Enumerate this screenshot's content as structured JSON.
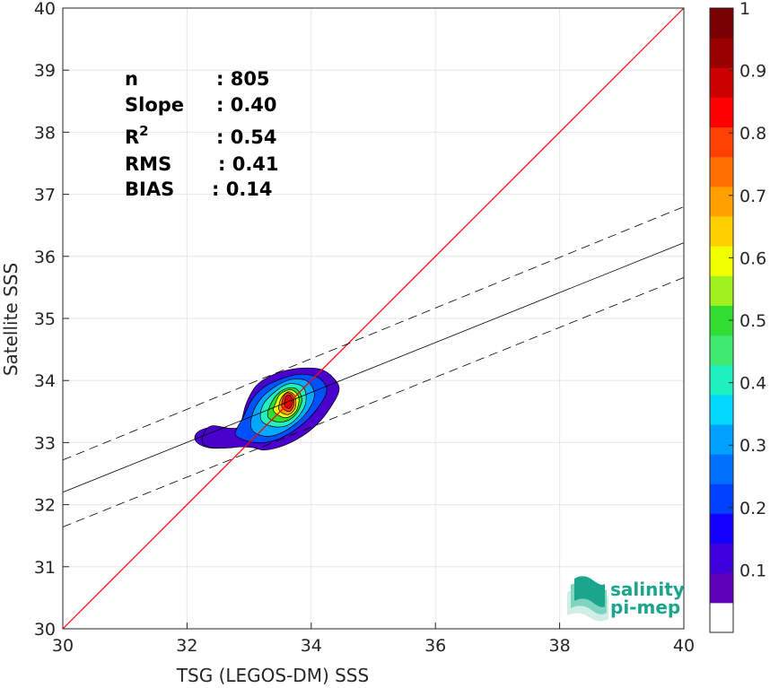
{
  "chart_data": {
    "type": "scatter",
    "subtype": "density-contour",
    "title": "",
    "xlabel": "TSG (LEGOS-DM) SSS",
    "ylabel": "Satellite SSS",
    "xlim": [
      30,
      40
    ],
    "ylim": [
      30,
      40
    ],
    "xticks": [
      30,
      32,
      34,
      36,
      38,
      40
    ],
    "yticks": [
      30,
      31,
      32,
      33,
      34,
      35,
      36,
      37,
      38,
      39,
      40
    ],
    "grid": true,
    "stats": [
      {
        "key": "n",
        "value": ": 805"
      },
      {
        "key": "Slope",
        "value": ": 0.40"
      },
      {
        "key": "R",
        "sup": "2",
        "value": ": 0.54"
      },
      {
        "key": "RMS",
        "value": ": 0.41"
      },
      {
        "key": "BIAS",
        "value": ": 0.14"
      }
    ],
    "one_to_one_line": {
      "color": "#ff0000",
      "from": [
        30,
        30
      ],
      "to": [
        40,
        40
      ]
    },
    "regression_line": {
      "from": [
        30,
        32.2
      ],
      "to": [
        40,
        36.22
      ]
    },
    "confidence_lines": [
      {
        "from": [
          30,
          32.72
        ],
        "to": [
          40,
          36.8
        ]
      },
      {
        "from": [
          30,
          31.64
        ],
        "to": [
          40,
          35.66
        ]
      }
    ],
    "density_peak": [
      33.62,
      33.68
    ],
    "colorbar": {
      "range": [
        0,
        1
      ],
      "ticks": [
        0.1,
        0.2,
        0.3,
        0.4,
        0.5,
        0.6,
        0.7,
        0.8,
        0.9,
        1
      ],
      "tick_labels": [
        "0.1",
        "0.2",
        "0.3",
        "0.4",
        "0.5",
        "0.6",
        "0.7",
        "0.8",
        "0.9",
        "1"
      ],
      "colors": [
        "#ffffff",
        "#5c00b8",
        "#3e00dd",
        "#1400ff",
        "#0040ff",
        "#0070ff",
        "#00a0ff",
        "#00d8ff",
        "#20f0c0",
        "#40e870",
        "#30dd30",
        "#a0f020",
        "#f0ff00",
        "#ffd000",
        "#ffa000",
        "#ff7000",
        "#ff4000",
        "#ff0000",
        "#cc0000",
        "#990000",
        "#780000"
      ]
    },
    "contour_levels": [
      {
        "level": 0.05,
        "color": "#4a00cc",
        "points": [
          [
            32.25,
            33.0
          ],
          [
            32.35,
            32.93
          ],
          [
            32.6,
            32.91
          ],
          [
            32.85,
            32.93
          ],
          [
            33.05,
            32.92
          ],
          [
            33.25,
            32.88
          ],
          [
            33.55,
            32.95
          ],
          [
            33.85,
            33.1
          ],
          [
            34.1,
            33.3
          ],
          [
            34.3,
            33.55
          ],
          [
            34.45,
            33.85
          ],
          [
            34.35,
            34.05
          ],
          [
            34.15,
            34.18
          ],
          [
            33.85,
            34.2
          ],
          [
            33.55,
            34.15
          ],
          [
            33.3,
            34.05
          ],
          [
            33.1,
            33.9
          ],
          [
            32.95,
            33.62
          ],
          [
            32.85,
            33.28
          ],
          [
            32.7,
            33.23
          ],
          [
            32.4,
            33.27
          ],
          [
            32.27,
            33.15
          ]
        ]
      },
      {
        "level": 0.2,
        "color": "#0050ff",
        "points": [
          [
            32.8,
            33.1
          ],
          [
            33.1,
            33.0
          ],
          [
            33.45,
            33.05
          ],
          [
            33.8,
            33.25
          ],
          [
            34.1,
            33.55
          ],
          [
            34.25,
            33.85
          ],
          [
            34.1,
            34.05
          ],
          [
            33.8,
            34.1
          ],
          [
            33.5,
            34.02
          ],
          [
            33.25,
            33.9
          ],
          [
            33.05,
            33.7
          ],
          [
            32.9,
            33.4
          ],
          [
            32.8,
            33.22
          ]
        ]
      },
      {
        "level": 0.3,
        "color": "#00a8ff",
        "points": [
          [
            33.05,
            33.2
          ],
          [
            33.3,
            33.1
          ],
          [
            33.6,
            33.2
          ],
          [
            33.9,
            33.45
          ],
          [
            34.05,
            33.75
          ],
          [
            33.95,
            33.98
          ],
          [
            33.7,
            34.02
          ],
          [
            33.45,
            33.92
          ],
          [
            33.2,
            33.72
          ],
          [
            33.05,
            33.45
          ]
        ]
      },
      {
        "level": 0.4,
        "color": "#20f0c0",
        "points": [
          [
            33.2,
            33.35
          ],
          [
            33.45,
            33.25
          ],
          [
            33.7,
            33.33
          ],
          [
            33.9,
            33.6
          ],
          [
            33.88,
            33.88
          ],
          [
            33.65,
            33.95
          ],
          [
            33.42,
            33.82
          ],
          [
            33.22,
            33.6
          ]
        ]
      },
      {
        "level": 0.5,
        "color": "#30dd30",
        "points": [
          [
            33.3,
            33.42
          ],
          [
            33.5,
            33.33
          ],
          [
            33.72,
            33.42
          ],
          [
            33.85,
            33.68
          ],
          [
            33.75,
            33.87
          ],
          [
            33.55,
            33.85
          ],
          [
            33.38,
            33.68
          ]
        ]
      },
      {
        "level": 0.6,
        "color": "#f0ff00",
        "points": [
          [
            33.4,
            33.5
          ],
          [
            33.58,
            33.4
          ],
          [
            33.75,
            33.5
          ],
          [
            33.8,
            33.72
          ],
          [
            33.68,
            33.85
          ],
          [
            33.5,
            33.78
          ],
          [
            33.42,
            33.62
          ]
        ]
      },
      {
        "level": 0.7,
        "color": "#ffa000",
        "points": [
          [
            33.48,
            33.53
          ],
          [
            33.62,
            33.45
          ],
          [
            33.74,
            33.55
          ],
          [
            33.74,
            33.74
          ],
          [
            33.64,
            33.82
          ],
          [
            33.52,
            33.72
          ]
        ]
      },
      {
        "level": 0.8,
        "color": "#ff4000",
        "points": [
          [
            33.53,
            33.57
          ],
          [
            33.64,
            33.5
          ],
          [
            33.72,
            33.6
          ],
          [
            33.7,
            33.76
          ],
          [
            33.6,
            33.8
          ],
          [
            33.54,
            33.7
          ]
        ]
      },
      {
        "level": 0.9,
        "color": "#dd0000",
        "points": [
          [
            33.57,
            33.6
          ],
          [
            33.65,
            33.55
          ],
          [
            33.7,
            33.65
          ],
          [
            33.66,
            33.76
          ],
          [
            33.59,
            33.74
          ]
        ]
      }
    ],
    "secondary_blob": {
      "color": "#4a00cc",
      "inner_color": "#0050ff",
      "center": [
        32.47,
        33.08
      ]
    }
  },
  "logo": {
    "line1": "salinity",
    "line2": "pi-mep"
  }
}
